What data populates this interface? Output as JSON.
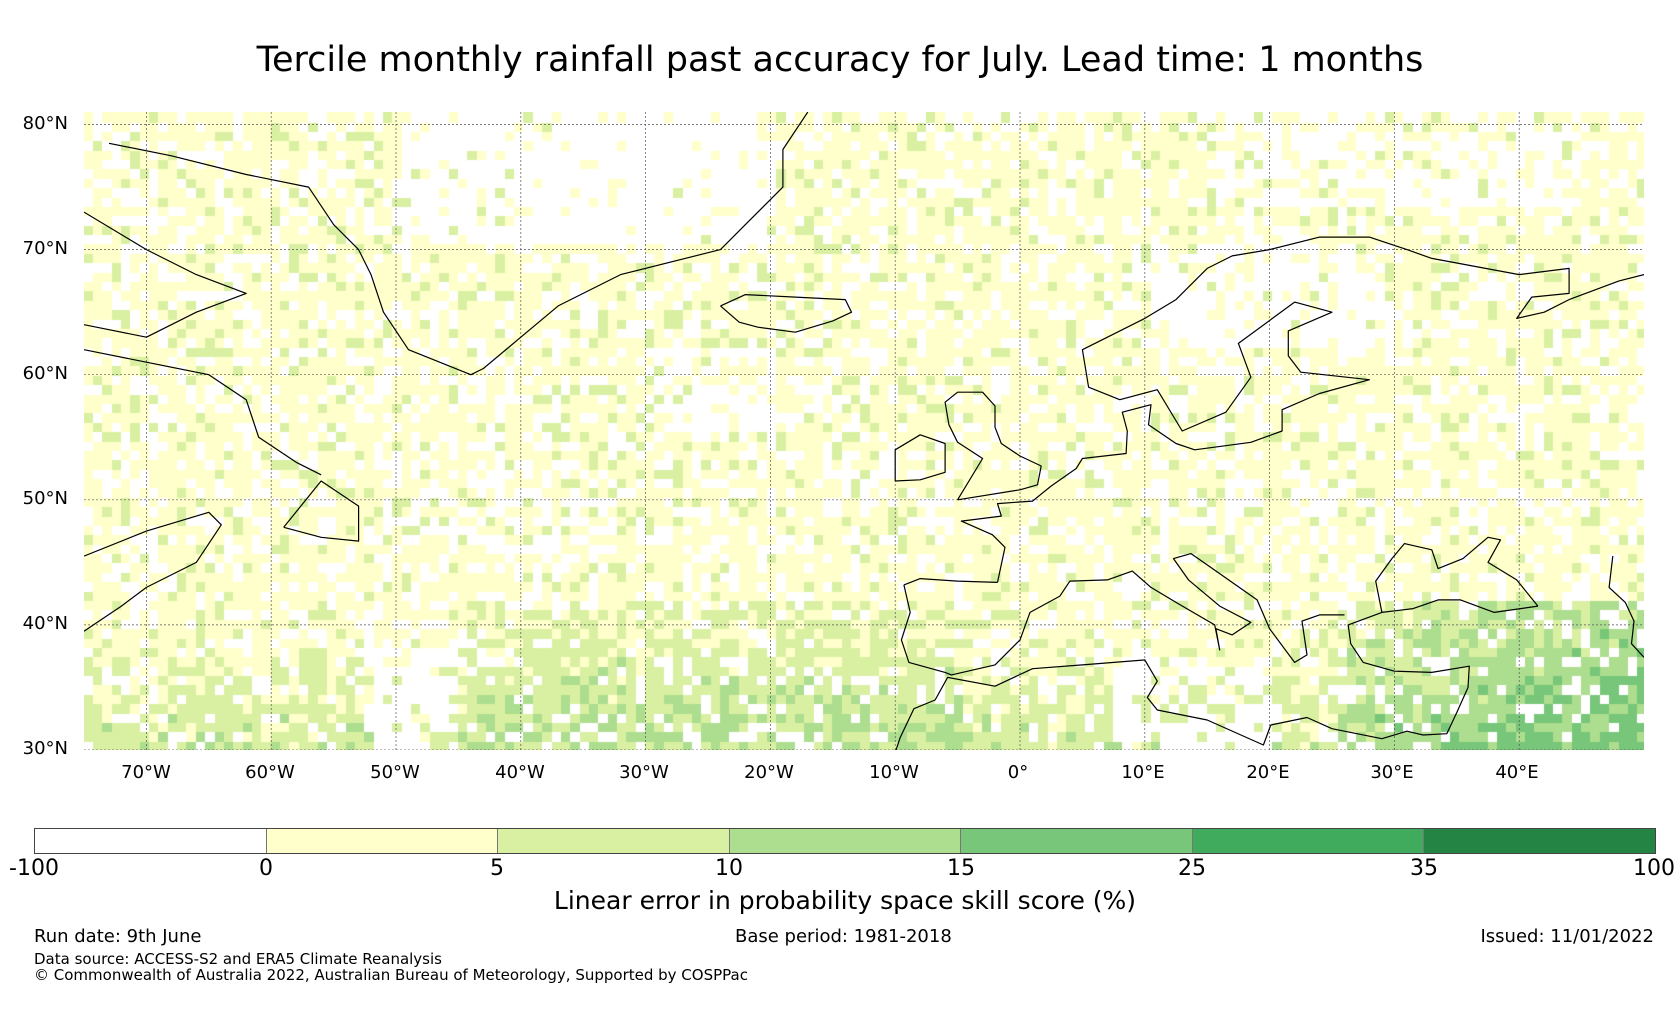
{
  "title": "Tercile monthly rainfall past accuracy for July. Lead time: 1 months",
  "map": {
    "extent": {
      "lon": [
        -75,
        50
      ],
      "lat": [
        30,
        81
      ]
    },
    "lat_ticks": [
      {
        "value": 80,
        "label": "80°N"
      },
      {
        "value": 70,
        "label": "70°N"
      },
      {
        "value": 60,
        "label": "60°N"
      },
      {
        "value": 50,
        "label": "50°N"
      },
      {
        "value": 40,
        "label": "40°N"
      },
      {
        "value": 30,
        "label": "30°N"
      }
    ],
    "lon_ticks": [
      {
        "value": -70,
        "label": "70°W"
      },
      {
        "value": -60,
        "label": "60°W"
      },
      {
        "value": -50,
        "label": "50°W"
      },
      {
        "value": -40,
        "label": "40°W"
      },
      {
        "value": -30,
        "label": "30°W"
      },
      {
        "value": -20,
        "label": "20°W"
      },
      {
        "value": -10,
        "label": "10°W"
      },
      {
        "value": 0,
        "label": "0°"
      },
      {
        "value": 10,
        "label": "10°E"
      },
      {
        "value": 20,
        "label": "20°E"
      },
      {
        "value": 30,
        "label": "30°E"
      },
      {
        "value": 40,
        "label": "40°E"
      }
    ],
    "gridlines": true,
    "coastline_color": "#000000"
  },
  "colorbar": {
    "label": "Linear error in probability space skill score (%)",
    "ticks": [
      "-100",
      "0",
      "5",
      "10",
      "15",
      "25",
      "35",
      "100"
    ],
    "colors": [
      "#ffffff",
      "#ffffcc",
      "#d9f0a3",
      "#addd8e",
      "#78c679",
      "#41ab5d",
      "#238443"
    ]
  },
  "footer": {
    "run_date": "Run date: 9th June",
    "base_period": "Base period: 1981-2018",
    "issued": "Issued: 11/01/2022",
    "data_source": "Data source: ACCESS-S2 and ERA5 Climate Reanalysis",
    "copyright": "© Commonwealth of Australia 2022, Australian Bureau of Meteorology, Supported by COSPPac"
  }
}
